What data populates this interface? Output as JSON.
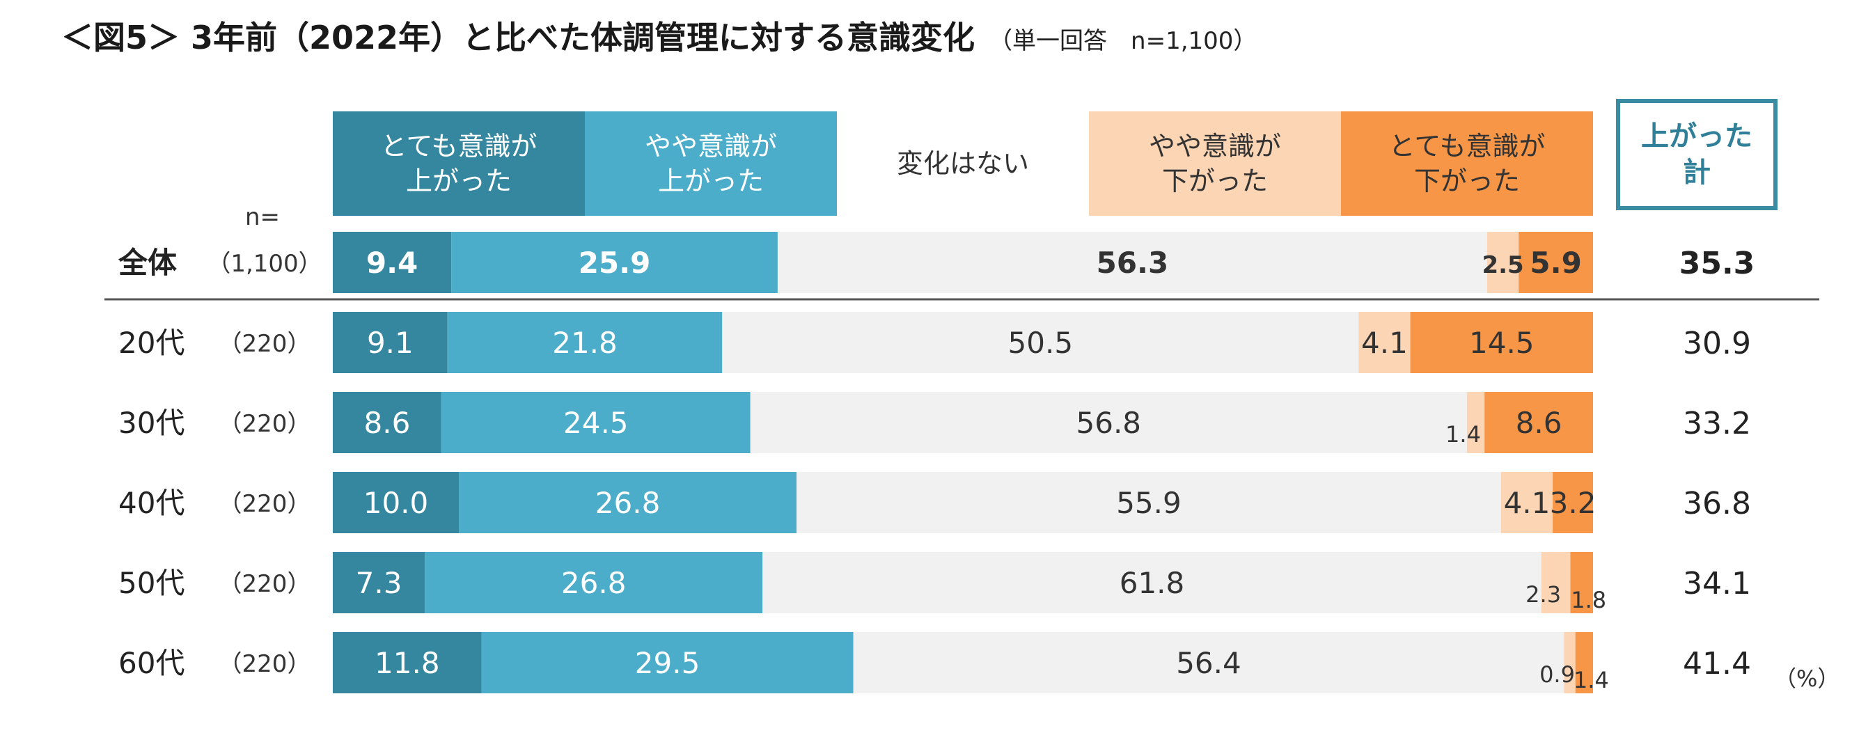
{
  "title": "＜図5＞ 3年前（2022年）と比べた体調管理に対する意識変化",
  "subtitle": "（単一回答　n=1,100）",
  "n_label": "n=",
  "unit_label": "（%）",
  "total_header": "上がった\n計",
  "colors": {
    "very_up": "#34879e",
    "some_up": "#4badc9",
    "no_change": "#f1f1f1",
    "some_down": "#fcd5b5",
    "very_down": "#f79646",
    "border": "#3a8ca3",
    "separator": "#555555"
  },
  "legend": [
    {
      "key": "very_up",
      "label": "とても意識が\n上がった",
      "text_color": "#ffffff"
    },
    {
      "key": "some_up",
      "label": "やや意識が\n上がった",
      "text_color": "#ffffff"
    },
    {
      "key": "no_change",
      "label": "変化はない",
      "text_color": "#333333"
    },
    {
      "key": "some_down",
      "label": "やや意識が\n下がった",
      "text_color": "#333333"
    },
    {
      "key": "very_down",
      "label": "とても意識が\n下がった",
      "text_color": "#333333"
    }
  ],
  "chart_data": {
    "type": "bar",
    "orientation": "horizontal",
    "stacked": "100%",
    "title": "＜図5＞ 3年前（2022年）と比べた体調管理に対する意識変化",
    "categories": [
      "全体",
      "20代",
      "30代",
      "40代",
      "50代",
      "60代"
    ],
    "n": [
      "（1,100）",
      "（220）",
      "（220）",
      "（220）",
      "（220）",
      "（220）"
    ],
    "series": [
      {
        "name": "とても意識が上がった",
        "values": [
          9.4,
          9.1,
          8.6,
          10.0,
          7.3,
          11.8
        ]
      },
      {
        "name": "やや意識が上がった",
        "values": [
          25.9,
          21.8,
          24.5,
          26.8,
          26.8,
          29.5
        ]
      },
      {
        "name": "変化はない",
        "values": [
          56.3,
          50.5,
          56.8,
          55.9,
          61.8,
          56.4
        ]
      },
      {
        "name": "やや意識が下がった",
        "values": [
          2.5,
          4.1,
          1.4,
          4.1,
          2.3,
          0.9
        ]
      },
      {
        "name": "とても意識が下がった",
        "values": [
          5.9,
          14.5,
          8.6,
          3.2,
          1.8,
          1.4
        ]
      }
    ],
    "totals_label": "上がった計",
    "totals": [
      35.3,
      30.9,
      33.2,
      36.8,
      34.1,
      41.4
    ],
    "unit": "%",
    "xlim": [
      0,
      100
    ]
  }
}
